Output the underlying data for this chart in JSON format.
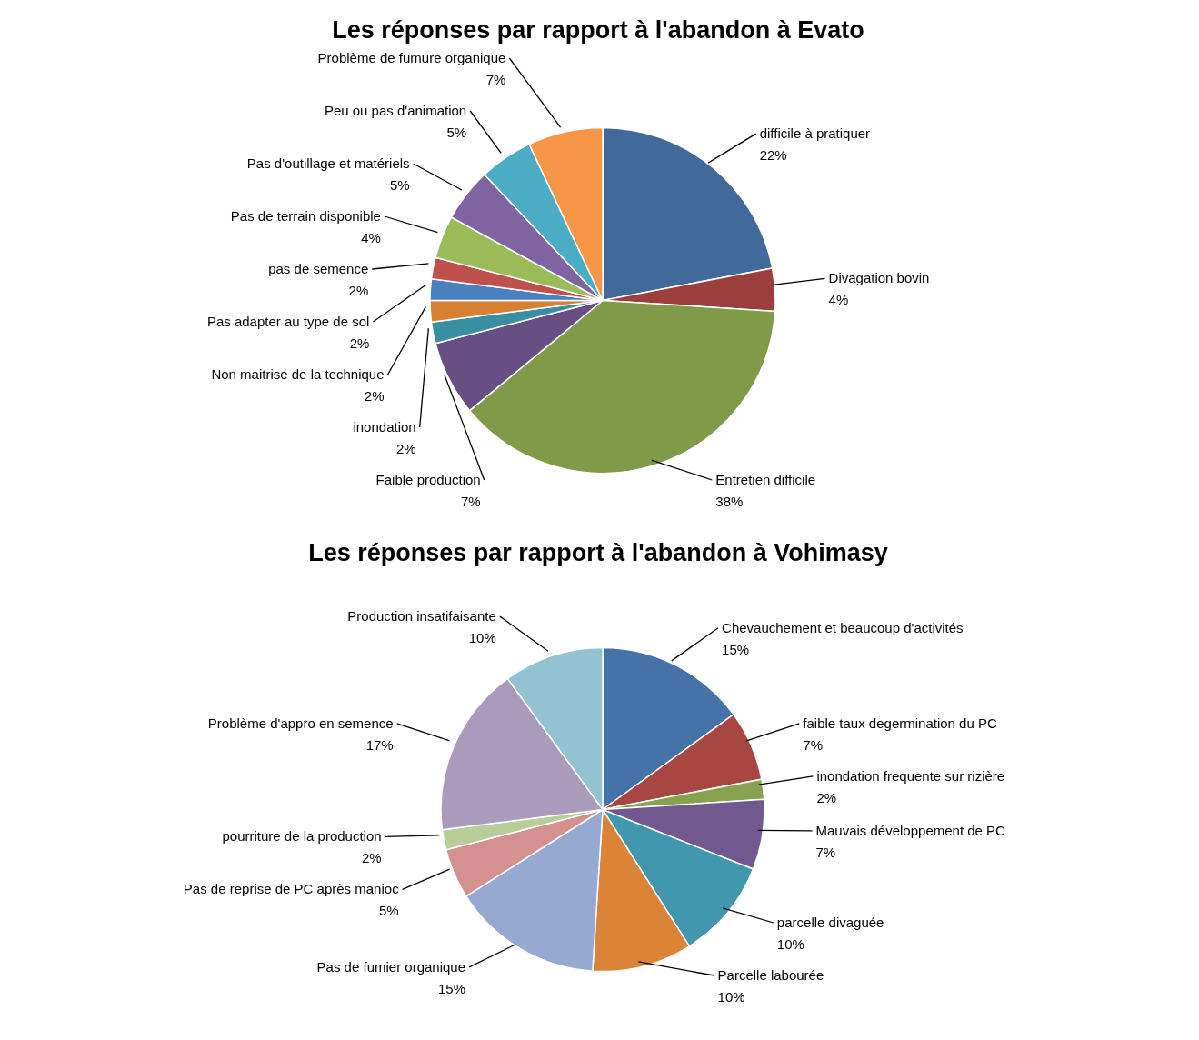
{
  "chart_data": [
    {
      "type": "pie",
      "title": "Les réponses par rapport à l'abandon à Evato",
      "categories": [
        "difficile à pratiquer",
        "Divagation bovin",
        "Entretien difficile",
        "Faible production",
        "inondation",
        "Non maitrise de la technique",
        "Pas adapter au type de sol",
        "pas de semence",
        "Pas de terrain disponible",
        "Pas d'outillage et matériels",
        "Peu ou pas d'animation",
        "Problème de fumure organique"
      ],
      "values": [
        22,
        4,
        38,
        7,
        2,
        2,
        2,
        2,
        4,
        5,
        5,
        7
      ],
      "value_labels": [
        "22%",
        "4%",
        "38%",
        "7%",
        "2%",
        "2%",
        "2%",
        "2%",
        "4%",
        "5%",
        "5%",
        "7%"
      ],
      "colors": [
        "#41699a",
        "#9b3f3d",
        "#7f9b49",
        "#674f83",
        "#3a8ea3",
        "#d68032",
        "#4a80c0",
        "#c0504d",
        "#9bbb59",
        "#8064a2",
        "#4bacc6",
        "#f79646"
      ]
    },
    {
      "type": "pie",
      "title": "Les réponses par rapport à l'abandon à Vohimasy",
      "categories": [
        "Chevauchement et beaucoup d'activités",
        "faible taux degermination du PC",
        "inondation frequente sur rizière",
        "Mauvais développement de PC",
        "parcelle divaguée",
        "Parcelle labourée",
        "Pas de fumier organique",
        "Pas de reprise de PC après manioc",
        "pourriture de la production",
        "Problème d'appro en semence",
        "Production insatifaisante"
      ],
      "values": [
        15,
        7,
        2,
        7,
        10,
        10,
        15,
        5,
        2,
        17,
        10
      ],
      "value_labels": [
        "15%",
        "7%",
        "2%",
        "7%",
        "10%",
        "10%",
        "15%",
        "5%",
        "2%",
        "17%",
        "10%"
      ],
      "colors": [
        "#4673a7",
        "#a84642",
        "#87a24f",
        "#71598f",
        "#4197ae",
        "#db8438",
        "#95a9d1",
        "#d49190",
        "#b8cd97",
        "#aa9bbd",
        "#93c3d3"
      ]
    }
  ]
}
